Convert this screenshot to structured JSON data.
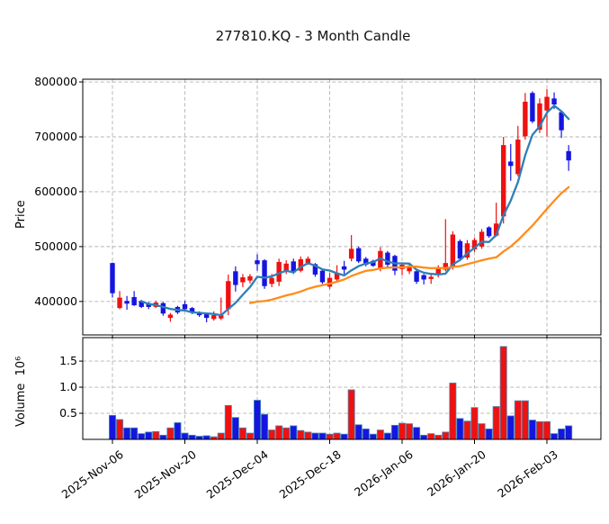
{
  "chart_data": {
    "type": "candlestick",
    "title": "277810.KQ - 3 Month Candle",
    "price_axis": {
      "label": "Price",
      "ticks": [
        400000,
        500000,
        600000,
        700000,
        800000
      ],
      "range": [
        339000,
        805000
      ]
    },
    "volume_axis": {
      "label": "Volume",
      "unit": "10⁶",
      "ticks": [
        0.5,
        1.0,
        1.5
      ],
      "range": [
        0,
        1.95
      ]
    },
    "x_axis": {
      "ticks": [
        {
          "slot": 0,
          "label": "2025-Nov-06"
        },
        {
          "slot": 10,
          "label": "2025-Nov-20"
        },
        {
          "slot": 20,
          "label": "2025-Dec-04"
        },
        {
          "slot": 30,
          "label": "2025-Dec-18"
        },
        {
          "slot": 40,
          "label": "2026-Jan-06"
        },
        {
          "slot": 50,
          "label": "2026-Jan-20"
        },
        {
          "slot": 60,
          "label": "2026-Feb-03"
        }
      ]
    },
    "legend_position": "none",
    "grid": true,
    "colors": {
      "up": "#ee1111",
      "down": "#1515e0",
      "ma_short": "#2e7fb8",
      "ma_long": "#ff8c1a",
      "volume_edge": "#4a8ab5",
      "grid": "#b3b3b3",
      "frame": "#000000"
    },
    "overlays": [
      {
        "name": "MA5",
        "window": 5,
        "color": "#2e7fb8"
      },
      {
        "name": "MA20",
        "window": 20,
        "color": "#ff8c1a"
      }
    ],
    "columns": [
      "date",
      "open",
      "high",
      "low",
      "close",
      "volume_millions"
    ],
    "candles": [
      [
        "2025-11-06",
        470000,
        471000,
        407000,
        415000,
        0.46
      ],
      [
        "2025-11-07",
        388000,
        419000,
        386000,
        407000,
        0.38
      ],
      [
        "2025-11-10",
        401000,
        410000,
        385000,
        396000,
        0.22
      ],
      [
        "2025-11-11",
        408000,
        419000,
        392000,
        393000,
        0.22
      ],
      [
        "2025-11-12",
        401000,
        403000,
        388000,
        390000,
        0.11
      ],
      [
        "2025-11-13",
        397000,
        399000,
        386000,
        390000,
        0.14
      ],
      [
        "2025-11-14",
        390000,
        401000,
        388000,
        398000,
        0.15
      ],
      [
        "2025-11-17",
        397000,
        399000,
        374000,
        378000,
        0.08
      ],
      [
        "2025-11-18",
        370000,
        379000,
        363000,
        376000,
        0.22
      ],
      [
        "2025-11-19",
        390000,
        392000,
        377000,
        380000,
        0.32
      ],
      [
        "2025-11-20",
        395000,
        401000,
        383000,
        386000,
        0.12
      ],
      [
        "2025-11-21",
        388000,
        390000,
        377000,
        380000,
        0.08
      ],
      [
        "2025-11-24",
        380000,
        382000,
        372000,
        375000,
        0.06
      ],
      [
        "2025-11-25",
        378000,
        380000,
        362000,
        370000,
        0.07
      ],
      [
        "2025-11-26",
        368000,
        382000,
        365000,
        375000,
        0.05
      ],
      [
        "2025-11-27",
        369000,
        407000,
        366000,
        375000,
        0.12
      ],
      [
        "2025-11-28",
        386000,
        449000,
        375000,
        437000,
        0.65
      ],
      [
        "2025-12-01",
        455000,
        464000,
        418000,
        430000,
        0.42
      ],
      [
        "2025-12-02",
        435000,
        450000,
        426000,
        444000,
        0.22
      ],
      [
        "2025-12-03",
        438000,
        450000,
        433000,
        446000,
        0.12
      ],
      [
        "2025-12-04",
        475000,
        486000,
        456000,
        468000,
        0.75
      ],
      [
        "2025-12-05",
        475000,
        477000,
        423000,
        428000,
        0.48
      ],
      [
        "2025-12-08",
        432000,
        450000,
        426000,
        443000,
        0.18
      ],
      [
        "2025-12-09",
        436000,
        478000,
        428000,
        472000,
        0.26
      ],
      [
        "2025-12-10",
        456000,
        475000,
        450000,
        469000,
        0.22
      ],
      [
        "2025-12-11",
        473000,
        478000,
        450000,
        453000,
        0.26
      ],
      [
        "2025-12-12",
        456000,
        482000,
        453000,
        477000,
        0.17
      ],
      [
        "2025-12-15",
        470000,
        482000,
        467000,
        478000,
        0.14
      ],
      [
        "2025-12-16",
        468000,
        470000,
        445000,
        449000,
        0.12
      ],
      [
        "2025-12-17",
        456000,
        458000,
        432000,
        435000,
        0.12
      ],
      [
        "2025-12-18",
        427000,
        452000,
        423000,
        443000,
        0.1
      ],
      [
        "2025-12-19",
        440000,
        466000,
        436000,
        452000,
        0.12
      ],
      [
        "2025-12-22",
        464000,
        474000,
        450000,
        458000,
        0.1
      ],
      [
        "2025-12-23",
        478000,
        521000,
        473000,
        496000,
        0.95
      ],
      [
        "2025-12-24",
        497000,
        500000,
        470000,
        473000,
        0.28
      ],
      [
        "2025-12-26",
        478000,
        481000,
        464000,
        467000,
        0.2
      ],
      [
        "2025-12-29",
        474000,
        476000,
        463000,
        465000,
        0.1
      ],
      [
        "2025-12-30",
        459000,
        499000,
        455000,
        492000,
        0.18
      ],
      [
        "2026-01-02",
        489000,
        492000,
        463000,
        467000,
        0.12
      ],
      [
        "2026-01-05",
        483000,
        485000,
        448000,
        456000,
        0.27
      ],
      [
        "2026-01-06",
        459000,
        470000,
        448000,
        467000,
        0.31
      ],
      [
        "2026-01-07",
        455000,
        468000,
        450000,
        463000,
        0.3
      ],
      [
        "2026-01-08",
        455000,
        458000,
        432000,
        436000,
        0.23
      ],
      [
        "2026-01-09",
        448000,
        450000,
        431000,
        440000,
        0.08
      ],
      [
        "2026-01-12",
        441000,
        452000,
        432000,
        445000,
        0.11
      ],
      [
        "2026-01-13",
        448000,
        466000,
        444000,
        462000,
        0.08
      ],
      [
        "2026-01-14",
        458000,
        550000,
        455000,
        470000,
        0.14
      ],
      [
        "2026-01-15",
        462000,
        528000,
        458000,
        522000,
        1.08
      ],
      [
        "2026-01-16",
        510000,
        513000,
        474000,
        478000,
        0.4
      ],
      [
        "2026-01-19",
        480000,
        512000,
        476000,
        506000,
        0.35
      ],
      [
        "2026-01-20",
        495000,
        516000,
        490000,
        512000,
        0.61
      ],
      [
        "2026-01-21",
        500000,
        532000,
        496000,
        527000,
        0.3
      ],
      [
        "2026-01-22",
        535000,
        537000,
        516000,
        519000,
        0.2
      ],
      [
        "2026-01-23",
        520000,
        580000,
        518000,
        542000,
        0.63
      ],
      [
        "2026-01-26",
        555000,
        700000,
        542000,
        685000,
        1.78
      ],
      [
        "2026-01-27",
        655000,
        687000,
        620000,
        647000,
        0.45
      ],
      [
        "2026-01-28",
        632000,
        720000,
        628000,
        695000,
        0.74
      ],
      [
        "2026-01-29",
        701000,
        780000,
        695000,
        764000,
        0.74
      ],
      [
        "2026-01-30",
        780000,
        783000,
        725000,
        728000,
        0.37
      ],
      [
        "2026-02-02",
        713000,
        770000,
        707000,
        761000,
        0.34
      ],
      [
        "2026-02-03",
        748000,
        787000,
        701000,
        773000,
        0.34
      ],
      [
        "2026-02-04",
        770000,
        781000,
        751000,
        759000,
        0.11
      ],
      [
        "2026-02-05",
        745000,
        748000,
        698000,
        712000,
        0.2
      ],
      [
        "2026-02-06",
        674000,
        685000,
        638000,
        657000,
        0.26
      ]
    ]
  }
}
